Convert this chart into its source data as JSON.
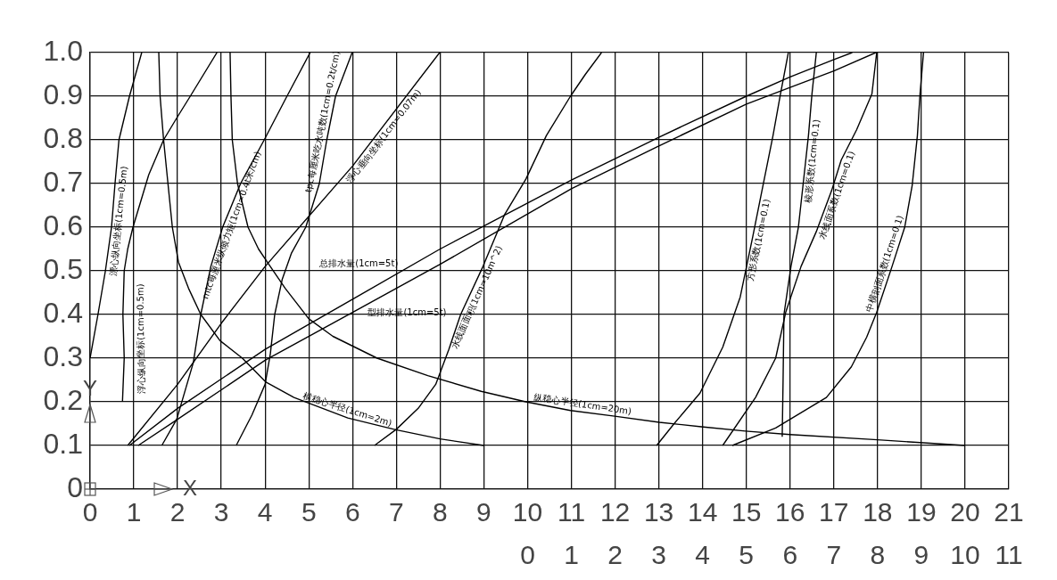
{
  "chart_data": {
    "type": "line",
    "xlim": [
      0,
      21
    ],
    "xticks": [
      0,
      1,
      2,
      3,
      4,
      5,
      6,
      7,
      8,
      9,
      10,
      11,
      12,
      13,
      14,
      15,
      16,
      17,
      18,
      19,
      20,
      21
    ],
    "x2lim": [
      -10,
      11
    ],
    "x2ticks": [
      0,
      1,
      2,
      3,
      4,
      5,
      6,
      7,
      8,
      9,
      10,
      11
    ],
    "ylim": [
      0,
      1
    ],
    "yticks": [
      0,
      0.1,
      0.2,
      0.3,
      0.4,
      0.5,
      0.6,
      0.7,
      0.8,
      0.9,
      {
        "value": 1,
        "label": "1.0"
      }
    ],
    "xlabel": "X",
    "ylabel": "Y",
    "grid": true,
    "series": [
      {
        "name": "漂心纵向坐标(1cm=0.5m)",
        "color": "#000000",
        "x": [
          0,
          0.18,
          0.35,
          0.49,
          0.57,
          0.66,
          0.78,
          0.9,
          1.04,
          1.18
        ],
        "values": [
          0.3,
          0.4,
          0.5,
          0.6,
          0.7,
          0.8,
          0.85,
          0.9,
          0.95,
          1.0
        ]
      },
      {
        "name": "浮心纵向坐标(1cm=0.5m)",
        "color": "#000000",
        "x": [
          0.74,
          0.78,
          0.75,
          0.78,
          0.86,
          0.98,
          1.34,
          1.68,
          1.98,
          2.29,
          2.9
        ],
        "values": [
          0.2,
          0.3,
          0.4,
          0.5,
          0.55,
          0.6,
          0.72,
          0.8,
          0.85,
          0.9,
          1.0
        ]
      },
      {
        "name": "横稳心半径(1cm=2m)",
        "color": "#000000",
        "x": [
          1.57,
          1.6,
          1.68,
          1.78,
          1.88,
          2.02,
          2.25,
          2.53,
          2.97,
          3.48,
          4.02,
          4.66,
          5.89,
          6.99,
          8.0,
          9.0
        ],
        "values": [
          1.0,
          0.9,
          0.8,
          0.7,
          0.6,
          0.52,
          0.46,
          0.4,
          0.34,
          0.3,
          0.245,
          0.21,
          0.163,
          0.136,
          0.115,
          0.1
        ]
      },
      {
        "name": "纵稳心半径(1cm=20m)",
        "color": "#000000",
        "x": [
          3.2,
          3.22,
          3.25,
          3.37,
          3.61,
          3.85,
          4.05,
          4.46,
          5.0,
          5.55,
          6.56,
          7.72,
          8.94,
          9.96,
          10.98,
          11.99,
          13.01,
          13.97,
          14.98,
          16.0,
          18.0,
          20.0
        ],
        "values": [
          1.0,
          0.9,
          0.8,
          0.7,
          0.6,
          0.55,
          0.52,
          0.46,
          0.39,
          0.35,
          0.3,
          0.26,
          0.224,
          0.2,
          0.18,
          0.167,
          0.153,
          0.143,
          0.133,
          0.125,
          0.113,
          0.1
        ]
      },
      {
        "name": "mtc每厘米纵倾力矩(1cm=0.4t米/cm)",
        "color": "#000000",
        "x": [
          1.64,
          1.98,
          2.36,
          2.53,
          2.76,
          3.03,
          3.44,
          3.98,
          4.5,
          5.03
        ],
        "values": [
          0.1,
          0.16,
          0.29,
          0.4,
          0.51,
          0.6,
          0.7,
          0.8,
          0.9,
          1.0
        ]
      },
      {
        "name": "tpc每厘米吃水吨数(1cm=0.2t/cm)",
        "color": "#000000",
        "x": [
          3.34,
          3.7,
          4.0,
          4.12,
          4.22,
          4.39,
          4.6,
          4.93,
          5.24,
          5.41,
          5.61,
          5.99
        ],
        "values": [
          0.1,
          0.17,
          0.24,
          0.31,
          0.4,
          0.48,
          0.54,
          0.6,
          0.7,
          0.8,
          0.9,
          1.0
        ]
      },
      {
        "name": "浮心垂向坐标(1cm=0.07m)",
        "color": "#000000",
        "x": [
          0.86,
          2,
          3,
          4,
          6,
          7.99
        ],
        "values": [
          0.1,
          0.24,
          0.38,
          0.51,
          0.74,
          1.0
        ]
      },
      {
        "name": "总排水量(1cm=5t)",
        "color": "#000000",
        "x": [
          0.9,
          2,
          4,
          6,
          8,
          11,
          13,
          15,
          16,
          17,
          17.42
        ],
        "values": [
          0.1,
          0.185,
          0.32,
          0.435,
          0.55,
          0.708,
          0.806,
          0.9,
          0.944,
          0.984,
          1.0
        ]
      },
      {
        "name": "型排水量(1cm=5t)",
        "color": "#000000",
        "x": [
          1.1,
          2,
          4,
          6,
          8,
          11,
          13,
          15,
          16,
          17,
          17.96
        ],
        "values": [
          0.1,
          0.16,
          0.295,
          0.405,
          0.515,
          0.688,
          0.786,
          0.882,
          0.92,
          0.958,
          1.0
        ]
      },
      {
        "name": "水线面面积(1cm=10m^2)",
        "color": "#000000",
        "x": [
          6.5,
          7.0,
          7.5,
          7.9,
          8.2,
          8.47,
          8.98,
          9.48,
          9.96,
          10.43,
          10.98,
          11.32,
          11.69
        ],
        "values": [
          0.1,
          0.137,
          0.185,
          0.24,
          0.32,
          0.4,
          0.51,
          0.63,
          0.71,
          0.81,
          0.9,
          0.95,
          1.0
        ]
      },
      {
        "name": "方形系数(1cm=0.1)",
        "color": "#000000",
        "x": [
          12.95,
          13.35,
          13.94,
          14.46,
          14.86,
          15.15,
          15.38,
          15.61,
          15.78,
          15.96
        ],
        "values": [
          0.1,
          0.15,
          0.22,
          0.325,
          0.44,
          0.58,
          0.695,
          0.81,
          0.905,
          1.0
        ]
      },
      {
        "name": "棱形系数(1cm=0.1)",
        "color": "#000000",
        "x": [
          15.82,
          15.84,
          15.86,
          16.02,
          16.19,
          16.3,
          16.42,
          16.5,
          16.6
        ],
        "values": [
          0.12,
          0.25,
          0.4,
          0.51,
          0.6,
          0.7,
          0.81,
          0.905,
          1.0
        ]
      },
      {
        "name": "水线面系数(1cm=0.1)",
        "color": "#000000",
        "x": [
          14.46,
          15.21,
          15.67,
          15.9,
          16.25,
          16.6,
          16.95,
          17.17,
          17.52,
          17.87,
          17.98
        ],
        "values": [
          0.1,
          0.21,
          0.3,
          0.405,
          0.51,
          0.59,
          0.684,
          0.754,
          0.823,
          0.905,
          1.0
        ]
      },
      {
        "name": "中横剖面系数(1cm=0.1)",
        "color": "#000000",
        "x": [
          14.68,
          15.67,
          16.83,
          17.4,
          17.75,
          17.98,
          18.33,
          18.62,
          18.79,
          18.91,
          18.97,
          19.05
        ],
        "values": [
          0.1,
          0.14,
          0.21,
          0.28,
          0.348,
          0.405,
          0.51,
          0.6,
          0.695,
          0.81,
          0.905,
          1.0
        ]
      }
    ]
  }
}
